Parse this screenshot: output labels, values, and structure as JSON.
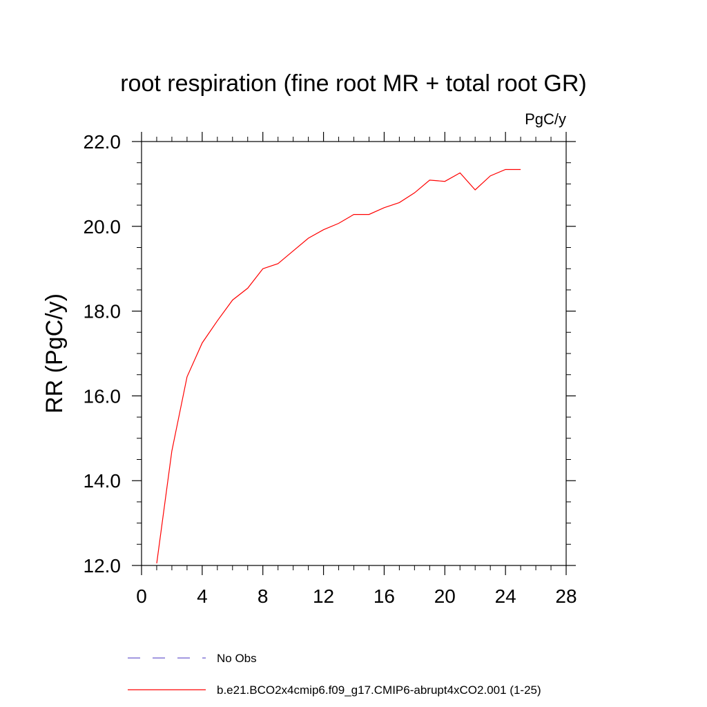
{
  "chart_data": {
    "type": "line",
    "title": "root respiration (fine root MR + total root GR)",
    "units": "PgC/y",
    "ylabel": "RR  (PgC/y)",
    "xlabel": "",
    "xlim": [
      0,
      28
    ],
    "ylim": [
      12.0,
      22.0
    ],
    "xticks": [
      0,
      4,
      8,
      12,
      16,
      20,
      24,
      28
    ],
    "yticks": [
      12.0,
      14.0,
      16.0,
      18.0,
      20.0,
      22.0
    ],
    "grid": false,
    "series": [
      {
        "name": "No Obs",
        "color": "#6a5acd",
        "style": "dashed",
        "x": [],
        "y": []
      },
      {
        "name": "b.e21.BCO2x4cmip6.f09_g17.CMIP6-abrupt4xCO2.001 (1-25)",
        "color": "#ff0000",
        "style": "solid",
        "x": [
          1,
          2,
          3,
          4,
          5,
          6,
          7,
          8,
          9,
          10,
          11,
          12,
          13,
          14,
          15,
          16,
          17,
          18,
          19,
          20,
          21,
          22,
          23,
          24,
          25
        ],
        "y": [
          12.05,
          14.7,
          16.45,
          17.25,
          17.77,
          18.26,
          18.54,
          19.0,
          19.12,
          19.42,
          19.72,
          19.92,
          20.07,
          20.28,
          20.28,
          20.44,
          20.56,
          20.79,
          21.09,
          21.06,
          21.26,
          20.86,
          21.19,
          21.34,
          21.34
        ]
      }
    ],
    "legend": "bottom-left"
  }
}
